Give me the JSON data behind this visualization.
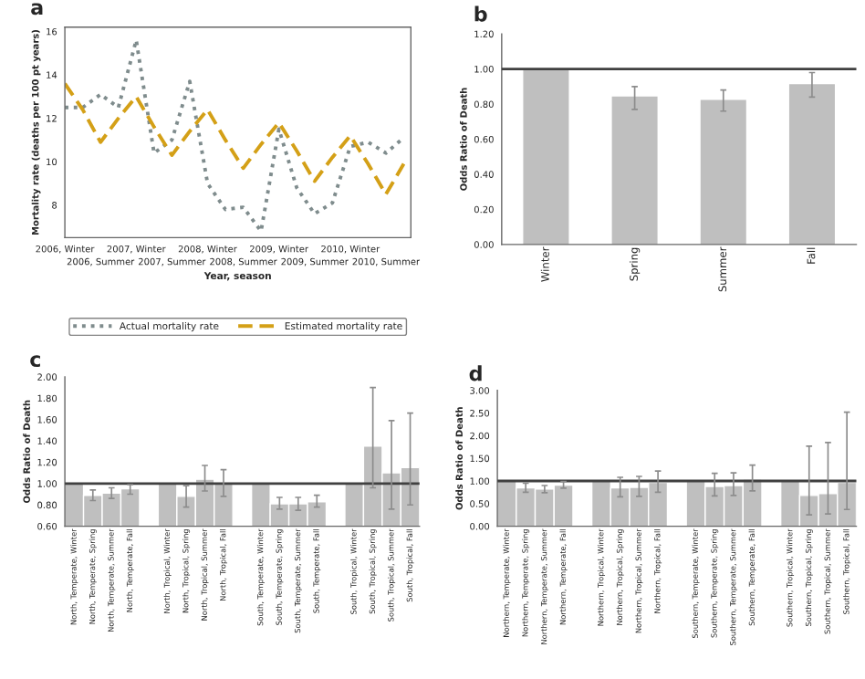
{
  "chart_data": [
    {
      "type": "line",
      "title": "a",
      "xlabel": "Year, season",
      "ylabel": "Mortality rate (deaths per 100 pt years)",
      "categories": [
        "2006, Winter",
        null,
        "2006, Summer",
        null,
        "2007, Winter",
        null,
        "2007, Summer",
        null,
        "2008, Winter",
        null,
        "2008, Summer",
        null,
        "2009, Winter",
        null,
        "2009, Summer",
        null,
        "2010, Winter",
        null,
        "2010, Summer",
        null
      ],
      "series": [
        {
          "name": "Actual mortality rate",
          "color": "#7f8c8d",
          "line_style": "dotted",
          "values": [
            12.5,
            12.5,
            13.1,
            12.5,
            15.6,
            10.4,
            11.0,
            13.7,
            9.0,
            7.8,
            7.9,
            6.8,
            11.5,
            8.8,
            7.6,
            8.1,
            10.7,
            10.9,
            10.4,
            11.1
          ]
        },
        {
          "name": "Estimated mortality rate",
          "color": "#d4a017",
          "line_style": "dashed",
          "values": [
            13.6,
            12.4,
            10.9,
            12.0,
            13.0,
            11.6,
            10.3,
            11.4,
            12.4,
            11.0,
            9.7,
            10.8,
            11.8,
            10.5,
            9.1,
            10.2,
            11.2,
            9.9,
            8.5,
            9.9
          ]
        }
      ],
      "ylim": [
        6.5,
        16.2
      ],
      "yticks": [
        8,
        10,
        12,
        14,
        16
      ],
      "grid": false,
      "legend": "bottom",
      "marker": "none"
    },
    {
      "type": "bar",
      "title": "b",
      "ylabel": "Odds Ratio of Death",
      "categories": [
        "Winter",
        "Spring",
        "Summer",
        "Fall"
      ],
      "series": [
        {
          "color": "#bfbfbf",
          "values": [
            1.0,
            0.84,
            0.82,
            0.91
          ],
          "errors": [
            null,
            [
              0.77,
              0.9
            ],
            [
              0.76,
              0.88
            ],
            [
              0.84,
              0.98
            ]
          ]
        }
      ],
      "ylim": [
        0,
        1.2
      ],
      "yticks": [
        {
          "value": 0,
          "label": "0.00"
        },
        {
          "value": 0.2,
          "label": "0.20"
        },
        {
          "value": 0.4,
          "label": "0.40"
        },
        {
          "value": 0.6,
          "label": "0.60"
        },
        {
          "value": 0.8,
          "label": "0.80"
        },
        {
          "value": 1.0,
          "label": "1.00"
        },
        {
          "value": 1.2,
          "label": "1.20"
        }
      ],
      "ref_lines": [
        {
          "axis": "y",
          "value": 1.0,
          "color": "#404040"
        }
      ],
      "grid": false,
      "legend": false
    },
    {
      "type": "bar",
      "title": "c",
      "ylabel": "Odds Ratio of Death",
      "categories": [
        "North, Temperate, Winter",
        "North, Temperate, Spring",
        "North, Temperate, Summer",
        "North, Temperate, Fall",
        null,
        "North, Tropical, Winter",
        "North, Tropical, Spring",
        "North, Tropical, Summer",
        "North, Tropical, Fall",
        null,
        "South, Temperate, Winter",
        "South, Temperate, Spring",
        "South, Temperate, Summer",
        "South, Temperate, Fall",
        null,
        "South, Tropical, Winter",
        "South, Tropical, Spring",
        "South, Tropical, Summer",
        "South, Tropical, Fall"
      ],
      "series": [
        {
          "color": "#bfbfbf",
          "values": [
            1.0,
            0.89,
            0.91,
            0.95,
            null,
            1.0,
            0.88,
            1.04,
            1.0,
            null,
            1.0,
            0.81,
            0.81,
            0.83,
            null,
            1.0,
            1.35,
            1.1,
            1.15
          ],
          "errors": [
            null,
            [
              0.84,
              0.94
            ],
            [
              0.86,
              0.96
            ],
            [
              0.9,
              0.99
            ],
            null,
            null,
            [
              0.78,
              0.98
            ],
            [
              0.93,
              1.17
            ],
            [
              0.88,
              1.13
            ],
            null,
            null,
            [
              0.76,
              0.87
            ],
            [
              0.75,
              0.87
            ],
            [
              0.78,
              0.89
            ],
            null,
            null,
            [
              0.96,
              1.9
            ],
            [
              0.76,
              1.59
            ],
            [
              0.8,
              1.66
            ]
          ]
        }
      ],
      "ylim": [
        0.6,
        2.0
      ],
      "yticks": [
        {
          "value": 0.6,
          "label": "0.60"
        },
        {
          "value": 0.8,
          "label": "0.80"
        },
        {
          "value": 1.0,
          "label": "1.00"
        },
        {
          "value": 1.2,
          "label": "1.20"
        },
        {
          "value": 1.4,
          "label": "1.40"
        },
        {
          "value": 1.6,
          "label": "1.60"
        },
        {
          "value": 1.8,
          "label": "1.80"
        },
        {
          "value": 2.0,
          "label": "2.00"
        }
      ],
      "ref_lines": [
        {
          "axis": "y",
          "value": 1.0,
          "color": "#404040"
        }
      ],
      "grid": false,
      "legend": false
    },
    {
      "type": "bar",
      "title": "d",
      "ylabel": "Odds Ratio of Death",
      "categories": [
        "Northern, Temperate, Winter",
        "Northern, Temperate, Spring",
        "Northern, Temperate, Summer",
        "Northern, Temperate, Fall",
        null,
        "Northern, Tropical, Winter",
        "Northern, Tropical, Spring",
        "Northern, Tropical, Summer",
        "Northern, Tropical, Fall",
        null,
        "Southern, Temperate, Winter",
        "Southern, Temperate, Spring",
        "Southern, Temperate, Summer",
        "Southern, Temperate, Fall",
        null,
        "Southern, Tropical, Winter",
        "Southern, Tropical, Spring",
        "Southern, Tropical, Summer",
        "Southern, Tropical, Fall"
      ],
      "series": [
        {
          "color": "#bfbfbf",
          "values": [
            1.0,
            0.85,
            0.82,
            0.91,
            null,
            1.0,
            0.85,
            0.86,
            0.97,
            null,
            1.0,
            0.88,
            0.9,
            1.04,
            null,
            1.0,
            0.68,
            0.72,
            0.97
          ],
          "errors": [
            null,
            [
              0.75,
              0.95
            ],
            [
              0.74,
              0.9
            ],
            [
              0.84,
              0.99
            ],
            null,
            null,
            [
              0.65,
              1.08
            ],
            [
              0.66,
              1.1
            ],
            [
              0.75,
              1.22
            ],
            null,
            null,
            [
              0.67,
              1.17
            ],
            [
              0.68,
              1.18
            ],
            [
              0.78,
              1.35
            ],
            null,
            null,
            [
              0.25,
              1.77
            ],
            [
              0.27,
              1.85
            ],
            [
              0.37,
              2.52
            ]
          ]
        }
      ],
      "ylim": [
        0,
        3.0
      ],
      "yticks": [
        {
          "value": 0,
          "label": "0.00"
        },
        {
          "value": 0.5,
          "label": "0.50"
        },
        {
          "value": 1.0,
          "label": "1.00"
        },
        {
          "value": 1.5,
          "label": "1.50"
        },
        {
          "value": 2.0,
          "label": "2.00"
        },
        {
          "value": 2.5,
          "label": "2.50"
        },
        {
          "value": 3.0,
          "label": "3.00"
        }
      ],
      "ref_lines": [
        {
          "axis": "y",
          "value": 1.0,
          "color": "#404040"
        }
      ],
      "grid": false,
      "legend": false
    }
  ]
}
